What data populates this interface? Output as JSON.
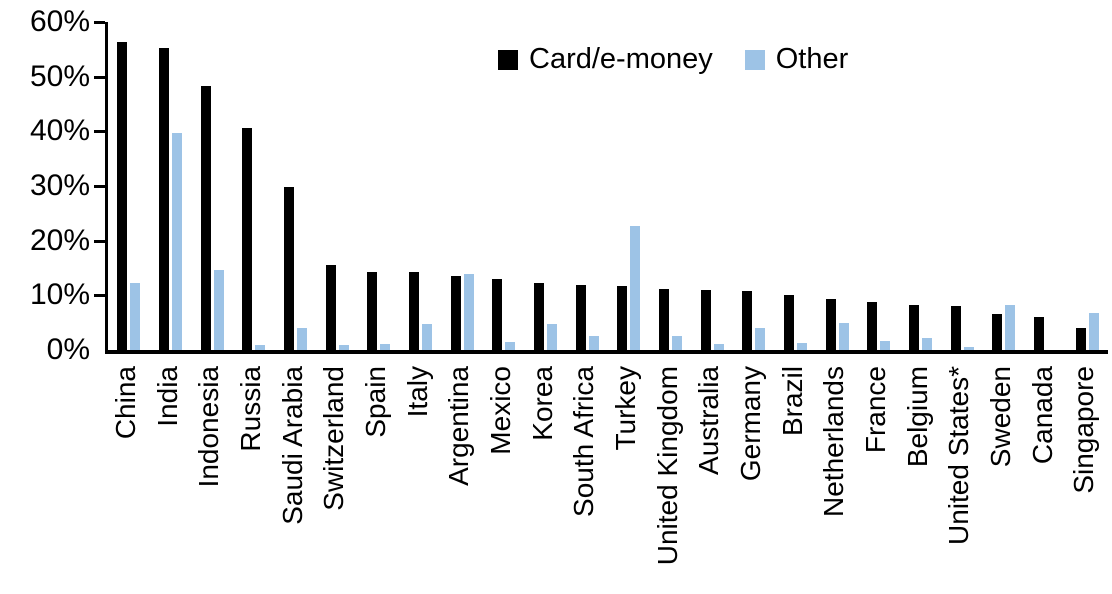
{
  "chart_data": {
    "type": "bar",
    "title": "",
    "xlabel": "",
    "ylabel": "",
    "ylim": [
      0,
      60
    ],
    "grid": false,
    "legend_position": "top-center",
    "y_ticks": [
      {
        "label": "0%",
        "value": 0
      },
      {
        "label": "10%",
        "value": 10
      },
      {
        "label": "20%",
        "value": 20
      },
      {
        "label": "30%",
        "value": 30
      },
      {
        "label": "40%",
        "value": 40
      },
      {
        "label": "50%",
        "value": 50
      },
      {
        "label": "60%",
        "value": 60
      }
    ],
    "categories": [
      "China",
      "India",
      "Indonesia",
      "Russia",
      "Saudi Arabia",
      "Switzerland",
      "Spain",
      "Italy",
      "Argentina",
      "Mexico",
      "Korea",
      "South Africa",
      "Turkey",
      "United Kingdom",
      "Australia",
      "Germany",
      "Brazil",
      "Netherlands",
      "France",
      "Belgium",
      "United States*",
      "Sweden",
      "Canada",
      "Singapore"
    ],
    "series": [
      {
        "name": "Card/e-money",
        "color": "#000000",
        "values": [
          56.3,
          55.2,
          48.3,
          40.6,
          29.9,
          15.6,
          14.3,
          14.2,
          13.5,
          13.0,
          12.3,
          11.9,
          11.7,
          11.2,
          11.0,
          10.8,
          10.1,
          9.4,
          8.8,
          8.3,
          8.1,
          6.6,
          6.0,
          4.0
        ]
      },
      {
        "name": "Other",
        "color": "#9dc3e6",
        "values": [
          12.3,
          39.7,
          14.6,
          1.0,
          4.0,
          0.9,
          1.1,
          4.7,
          13.9,
          1.4,
          4.7,
          2.5,
          22.7,
          2.5,
          1.1,
          4.0,
          1.3,
          5.0,
          1.6,
          2.2,
          0.5,
          8.3,
          0.0,
          6.7
        ]
      }
    ]
  },
  "colors": {
    "bar_card": "#000000",
    "bar_other": "#9dc3e6",
    "axis": "#000000",
    "background": "#ffffff"
  }
}
